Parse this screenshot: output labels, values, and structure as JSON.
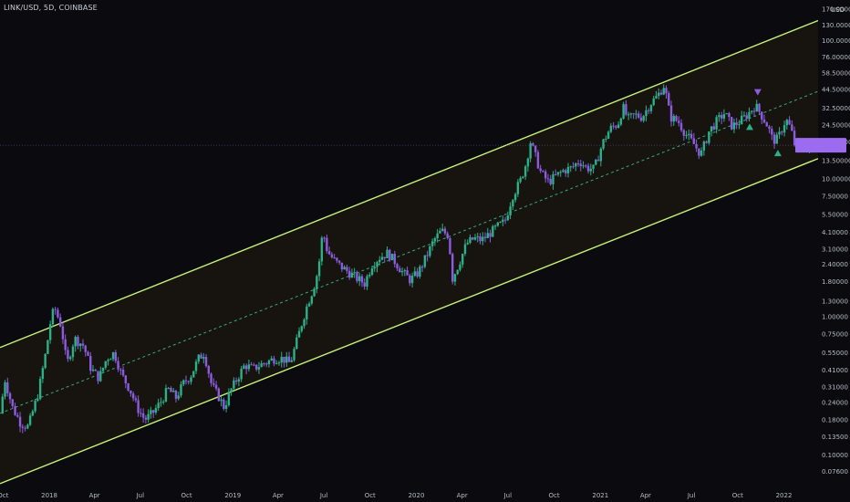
{
  "header": {
    "symbol": "LINK/USD, 5D, COINBASE",
    "unit": "USD"
  },
  "colors": {
    "background": "#0b0b0f",
    "up_candle": "#2bb08a",
    "down_candle": "#8c5be0",
    "channel_line": "#c6f27a",
    "midline": "#3aa87a",
    "channel_fill": "#1a160f",
    "current_price_box": "#9b6cf0",
    "axis_text": "#b8bcc6"
  },
  "chart_data": {
    "type": "candlestick",
    "title": "LINK/USD, 5D, COINBASE",
    "y_scale": "log",
    "ylabel": "USD",
    "ylim": [
      0.06,
      180
    ],
    "y_ticks": [
      170,
      130,
      100,
      76,
      58.5,
      44.5,
      32.5,
      24.5,
      18.5,
      13.5,
      10,
      7.5,
      5.5,
      4.1,
      3.1,
      2.4,
      1.8,
      1.3,
      1,
      0.75,
      0.55,
      0.41,
      0.31,
      0.24,
      0.18,
      0.135,
      0.1,
      0.076
    ],
    "y_tick_labels": [
      "170.00000",
      "130.00000",
      "100.00000",
      "76.00000",
      "58.50000",
      "44.50000",
      "32.50000",
      "24.50000",
      "18.50000",
      "13.50000",
      "10.00000",
      "7.50000",
      "5.50000",
      "4.10000",
      "3.10000",
      "2.40000",
      "1.80000",
      "1.30000",
      "1.00000",
      "0.75000",
      "0.55000",
      "0.41000",
      "0.31000",
      "0.24000",
      "0.18000",
      "0.13500",
      "0.10000",
      "0.07600"
    ],
    "x_range": [
      "2017-09-25",
      "2022-03-10"
    ],
    "x_ticks": [
      {
        "label": "Oct",
        "date": "2017-10-01"
      },
      {
        "label": "2018",
        "date": "2018-01-01"
      },
      {
        "label": "Apr",
        "date": "2018-04-01"
      },
      {
        "label": "Jul",
        "date": "2018-07-01"
      },
      {
        "label": "Oct",
        "date": "2018-10-01"
      },
      {
        "label": "2019",
        "date": "2019-01-01"
      },
      {
        "label": "Apr",
        "date": "2019-04-01"
      },
      {
        "label": "Jul",
        "date": "2019-07-01"
      },
      {
        "label": "Oct",
        "date": "2019-10-01"
      },
      {
        "label": "2020",
        "date": "2020-01-01"
      },
      {
        "label": "Apr",
        "date": "2020-04-01"
      },
      {
        "label": "Jul",
        "date": "2020-07-01"
      },
      {
        "label": "Oct",
        "date": "2020-10-01"
      },
      {
        "label": "2021",
        "date": "2021-01-01"
      },
      {
        "label": "Apr",
        "date": "2021-04-01"
      },
      {
        "label": "Jul",
        "date": "2021-07-01"
      },
      {
        "label": "Oct",
        "date": "2021-10-01"
      },
      {
        "label": "2022",
        "date": "2022-01-01"
      }
    ],
    "price_path": [
      [
        "2017-09-25",
        0.2
      ],
      [
        "2017-10-05",
        0.35
      ],
      [
        "2017-10-20",
        0.22
      ],
      [
        "2017-11-05",
        0.17
      ],
      [
        "2017-11-20",
        0.16
      ],
      [
        "2017-12-10",
        0.28
      ],
      [
        "2017-12-25",
        0.55
      ],
      [
        "2018-01-05",
        1.0
      ],
      [
        "2018-01-12",
        1.15
      ],
      [
        "2018-01-25",
        0.85
      ],
      [
        "2018-02-05",
        0.45
      ],
      [
        "2018-02-20",
        0.7
      ],
      [
        "2018-03-10",
        0.62
      ],
      [
        "2018-03-25",
        0.42
      ],
      [
        "2018-04-10",
        0.36
      ],
      [
        "2018-04-25",
        0.5
      ],
      [
        "2018-05-10",
        0.55
      ],
      [
        "2018-05-25",
        0.38
      ],
      [
        "2018-06-10",
        0.3
      ],
      [
        "2018-06-25",
        0.22
      ],
      [
        "2018-07-10",
        0.18
      ],
      [
        "2018-07-25",
        0.2
      ],
      [
        "2018-08-10",
        0.24
      ],
      [
        "2018-08-25",
        0.3
      ],
      [
        "2018-09-10",
        0.26
      ],
      [
        "2018-09-25",
        0.33
      ],
      [
        "2018-10-10",
        0.38
      ],
      [
        "2018-10-25",
        0.5
      ],
      [
        "2018-11-05",
        0.55
      ],
      [
        "2018-11-20",
        0.32
      ],
      [
        "2018-12-05",
        0.26
      ],
      [
        "2018-12-15",
        0.22
      ],
      [
        "2018-12-25",
        0.28
      ],
      [
        "2019-01-10",
        0.36
      ],
      [
        "2019-01-25",
        0.45
      ],
      [
        "2019-02-10",
        0.42
      ],
      [
        "2019-02-25",
        0.45
      ],
      [
        "2019-03-10",
        0.47
      ],
      [
        "2019-03-25",
        0.5
      ],
      [
        "2019-04-10",
        0.5
      ],
      [
        "2019-04-25",
        0.46
      ],
      [
        "2019-05-10",
        0.7
      ],
      [
        "2019-05-20",
        0.95
      ],
      [
        "2019-05-30",
        1.25
      ],
      [
        "2019-06-10",
        1.6
      ],
      [
        "2019-06-20",
        2.2
      ],
      [
        "2019-06-29",
        4.2
      ],
      [
        "2019-07-08",
        3.0
      ],
      [
        "2019-07-20",
        2.6
      ],
      [
        "2019-08-05",
        2.3
      ],
      [
        "2019-08-20",
        2.1
      ],
      [
        "2019-09-05",
        1.9
      ],
      [
        "2019-09-20",
        1.75
      ],
      [
        "2019-10-05",
        2.4
      ],
      [
        "2019-10-20",
        2.7
      ],
      [
        "2019-11-05",
        2.9
      ],
      [
        "2019-11-20",
        2.5
      ],
      [
        "2019-12-05",
        2.1
      ],
      [
        "2019-12-20",
        1.85
      ],
      [
        "2020-01-05",
        2.1
      ],
      [
        "2020-01-20",
        2.7
      ],
      [
        "2020-02-05",
        3.6
      ],
      [
        "2020-02-20",
        4.2
      ],
      [
        "2020-03-05",
        3.9
      ],
      [
        "2020-03-13",
        1.9
      ],
      [
        "2020-03-25",
        2.4
      ],
      [
        "2020-04-10",
        3.4
      ],
      [
        "2020-04-25",
        3.7
      ],
      [
        "2020-05-10",
        3.6
      ],
      [
        "2020-05-25",
        4.0
      ],
      [
        "2020-06-10",
        4.5
      ],
      [
        "2020-06-25",
        4.9
      ],
      [
        "2020-07-10",
        7.5
      ],
      [
        "2020-07-25",
        9.5
      ],
      [
        "2020-08-05",
        12.5
      ],
      [
        "2020-08-15",
        18.5
      ],
      [
        "2020-08-25",
        14.5
      ],
      [
        "2020-09-05",
        11.0
      ],
      [
        "2020-09-20",
        9.5
      ],
      [
        "2020-10-05",
        10.5
      ],
      [
        "2020-10-20",
        11.5
      ],
      [
        "2020-11-05",
        12.0
      ],
      [
        "2020-11-20",
        13.5
      ],
      [
        "2020-12-05",
        12.0
      ],
      [
        "2020-12-20",
        11.8
      ],
      [
        "2021-01-05",
        18.0
      ],
      [
        "2021-01-20",
        23.0
      ],
      [
        "2021-02-05",
        25.0
      ],
      [
        "2021-02-15",
        33.0
      ],
      [
        "2021-02-25",
        27.0
      ],
      [
        "2021-03-10",
        29.0
      ],
      [
        "2021-03-25",
        28.0
      ],
      [
        "2021-04-10",
        35.0
      ],
      [
        "2021-04-25",
        40.0
      ],
      [
        "2021-05-08",
        48.0
      ],
      [
        "2021-05-20",
        28.0
      ],
      [
        "2021-06-05",
        26.0
      ],
      [
        "2021-06-20",
        21.0
      ],
      [
        "2021-07-05",
        18.0
      ],
      [
        "2021-07-20",
        15.0
      ],
      [
        "2021-08-05",
        22.0
      ],
      [
        "2021-08-20",
        26.0
      ],
      [
        "2021-09-05",
        30.0
      ],
      [
        "2021-09-20",
        24.0
      ],
      [
        "2021-10-05",
        26.0
      ],
      [
        "2021-10-20",
        29.0
      ],
      [
        "2021-11-05",
        34.0
      ],
      [
        "2021-11-15",
        30.0
      ],
      [
        "2021-11-30",
        24.0
      ],
      [
        "2021-12-10",
        19.0
      ],
      [
        "2021-12-20",
        19.5
      ],
      [
        "2022-01-05",
        27.0
      ],
      [
        "2022-01-15",
        23.0
      ],
      [
        "2022-01-25",
        16.0
      ],
      [
        "2022-02-10",
        17.0
      ],
      [
        "2022-02-25",
        15.5
      ]
    ],
    "channel": {
      "upper": [
        [
          "2017-09-25",
          0.6
        ],
        [
          "2022-03-10",
          140
        ]
      ],
      "middle": [
        [
          "2017-09-25",
          0.2
        ],
        [
          "2022-03-10",
          43
        ]
      ],
      "lower": [
        [
          "2017-09-25",
          0.062
        ],
        [
          "2022-03-10",
          14
        ]
      ]
    },
    "markers": [
      {
        "type": "sell",
        "date": "2021-11-10",
        "price": 42
      },
      {
        "type": "buy",
        "date": "2021-10-25",
        "price": 24
      },
      {
        "type": "buy",
        "date": "2021-12-20",
        "price": 15.5
      }
    ],
    "current_price": 17.5,
    "grid": false,
    "legend": "none"
  }
}
